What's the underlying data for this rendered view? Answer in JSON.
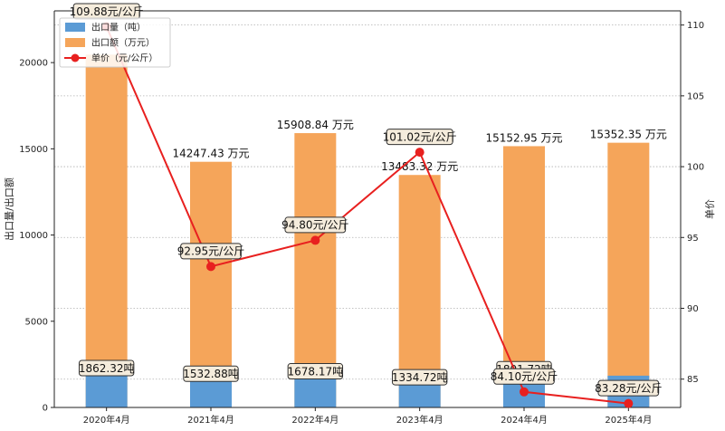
{
  "chart_data": {
    "type": "bar",
    "categories": [
      "2020年4月",
      "2021年4月",
      "2022年4月",
      "2023年4月",
      "2024年4月",
      "2025年4月"
    ],
    "ylabel": "出口量/出口额",
    "y2label": "单价",
    "ylim": [
      0,
      23000
    ],
    "y2lim": [
      83.0,
      111.0
    ],
    "yticks": [
      0,
      5000,
      10000,
      15000,
      20000
    ],
    "y2ticks": [
      85,
      90,
      95,
      100,
      105,
      110
    ],
    "grid": "horizontal dotted (right axis)",
    "legend_placement": "top-left",
    "series": [
      {
        "name": "出口量（吨）",
        "kind": "bar",
        "color": "#5b9bd5",
        "values": [
          1862.32,
          1532.88,
          1678.17,
          1334.72,
          1801.72,
          1843.45
        ],
        "labels": [
          "1862.32吨",
          "1532.88吨",
          "1678.17吨",
          "1334.72吨",
          "1801.72吨",
          ""
        ]
      },
      {
        "name": "出口额（万元）",
        "kind": "bar",
        "color": "#f5a55a",
        "values": [
          20465.0,
          14247.43,
          15908.84,
          13483.32,
          15152.95,
          15352.35
        ],
        "labels": [
          "",
          "14247.43 万元",
          "15908.84 万元",
          "13483.32 万元",
          "15152.95 万元",
          "15352.35 万元"
        ]
      },
      {
        "name": "单价（元/公斤）",
        "kind": "line",
        "axis": "right",
        "color": "#e8201f",
        "values": [
          109.88,
          92.95,
          94.8,
          101.02,
          84.1,
          83.28
        ],
        "labels": [
          "109.88元/公斤",
          "92.95元/公斤",
          "94.80元/公斤",
          "101.02元/公斤",
          "84.10元/公斤",
          "83.28元/公斤"
        ]
      }
    ]
  }
}
